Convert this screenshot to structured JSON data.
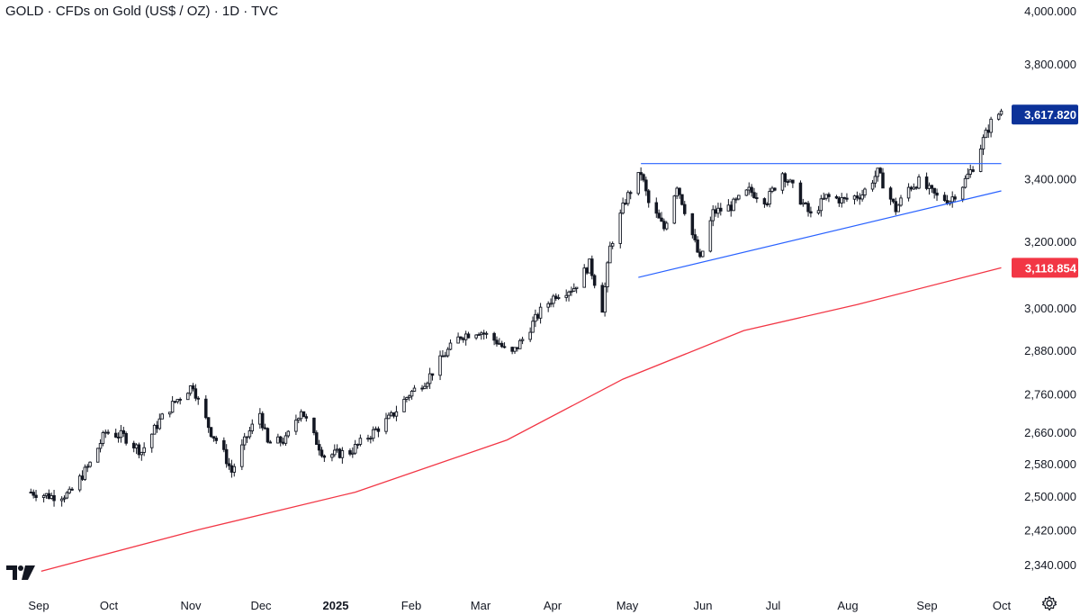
{
  "title": "GOLD · CFDs on Gold (US$ / OZ) · 1D · TVC",
  "icons": {
    "logo": "tradingview-logo-icon",
    "settings": "settings-gear-icon"
  },
  "colors": {
    "candle": "#131722",
    "ma_line": "#f23645",
    "trendline": "#2962ff",
    "last_price_badge": "#0c3299",
    "ma_badge": "#f23645"
  },
  "chart_data": {
    "type": "candlestick",
    "symbol": "GOLD",
    "interval": "1D",
    "x_tick_labels": [
      "Sep",
      "Oct",
      "Nov",
      "Dec",
      "2025",
      "Feb",
      "Mar",
      "Apr",
      "May",
      "Jun",
      "Jul",
      "Aug",
      "Sep",
      "Oct"
    ],
    "x_bold_labels": [
      "2025"
    ],
    "y_tick_labels": [
      "4,000.000",
      "3,800.000",
      "3,400.000",
      "3,200.000",
      "3,000.000",
      "2,880.000",
      "2,760.000",
      "2,660.000",
      "2,580.000",
      "2,500.000",
      "2,420.000",
      "2,340.000"
    ],
    "y_axis_scale": "log",
    "price_path_daily_closes": [
      [
        "2024-08-28",
        2510
      ],
      [
        "2024-09-05",
        2500
      ],
      [
        "2024-09-12",
        2505
      ],
      [
        "2024-09-20",
        2580
      ],
      [
        "2024-09-26",
        2660
      ],
      [
        "2024-10-03",
        2650
      ],
      [
        "2024-10-10",
        2610
      ],
      [
        "2024-10-17",
        2690
      ],
      [
        "2024-10-23",
        2740
      ],
      [
        "2024-10-30",
        2785
      ],
      [
        "2024-11-01",
        2740
      ],
      [
        "2024-11-06",
        2660
      ],
      [
        "2024-11-10",
        2620
      ],
      [
        "2024-11-14",
        2560
      ],
      [
        "2024-11-20",
        2650
      ],
      [
        "2024-11-25",
        2710
      ],
      [
        "2024-11-28",
        2630
      ],
      [
        "2024-12-05",
        2640
      ],
      [
        "2024-12-11",
        2720
      ],
      [
        "2024-12-15",
        2660
      ],
      [
        "2024-12-20",
        2600
      ],
      [
        "2024-12-30",
        2610
      ],
      [
        "2025-01-08",
        2660
      ],
      [
        "2025-01-15",
        2700
      ],
      [
        "2025-01-22",
        2760
      ],
      [
        "2025-01-29",
        2800
      ],
      [
        "2025-02-05",
        2870
      ],
      [
        "2025-02-11",
        2920
      ],
      [
        "2025-02-18",
        2935
      ],
      [
        "2025-02-26",
        2900
      ],
      [
        "2025-03-02",
        2860
      ],
      [
        "2025-03-07",
        2910
      ],
      [
        "2025-03-14",
        2990
      ],
      [
        "2025-03-20",
        3040
      ],
      [
        "2025-03-27",
        3060
      ],
      [
        "2025-04-02",
        3130
      ],
      [
        "2025-04-07",
        3000
      ],
      [
        "2025-04-10",
        3180
      ],
      [
        "2025-04-16",
        3330
      ],
      [
        "2025-04-22",
        3420
      ],
      [
        "2025-04-25",
        3320
      ],
      [
        "2025-05-01",
        3240
      ],
      [
        "2025-05-06",
        3380
      ],
      [
        "2025-05-12",
        3220
      ],
      [
        "2025-05-15",
        3140
      ],
      [
        "2025-05-20",
        3290
      ],
      [
        "2025-05-27",
        3310
      ],
      [
        "2025-06-03",
        3360
      ],
      [
        "2025-06-10",
        3330
      ],
      [
        "2025-06-16",
        3420
      ],
      [
        "2025-06-20",
        3370
      ],
      [
        "2025-06-27",
        3280
      ],
      [
        "2025-07-03",
        3340
      ],
      [
        "2025-07-10",
        3330
      ],
      [
        "2025-07-17",
        3350
      ],
      [
        "2025-07-23",
        3420
      ],
      [
        "2025-07-30",
        3300
      ],
      [
        "2025-08-04",
        3370
      ],
      [
        "2025-08-08",
        3390
      ],
      [
        "2025-08-15",
        3340
      ],
      [
        "2025-08-20",
        3330
      ],
      [
        "2025-08-25",
        3380
      ],
      [
        "2025-08-29",
        3440
      ],
      [
        "2025-09-02",
        3530
      ],
      [
        "2025-09-05",
        3590
      ],
      [
        "2025-09-09",
        3630
      ]
    ],
    "lines": [
      {
        "name": "moving average",
        "color": "#f23645",
        "points": [
          [
            "2024-09-01",
            2325
          ],
          [
            "2024-11-01",
            2420
          ],
          [
            "2025-01-01",
            2510
          ],
          [
            "2025-03-01",
            2640
          ],
          [
            "2025-04-15",
            2800
          ],
          [
            "2025-06-01",
            2935
          ],
          [
            "2025-07-15",
            3010
          ],
          [
            "2025-09-09",
            3118.854
          ]
        ]
      }
    ],
    "drawings": [
      {
        "type": "horizontal_resistance",
        "color": "#2962ff",
        "start": "2025-04-22",
        "end": "2025-09-09",
        "value": 3450
      },
      {
        "type": "rising_support",
        "color": "#2962ff",
        "start": "2025-04-21",
        "start_value": 3090,
        "end": "2025-09-09",
        "end_value": 3360
      }
    ],
    "price_labels": [
      {
        "label": "3,617.820",
        "type": "last_price",
        "color": "#0c3299"
      },
      {
        "label": "3,118.854",
        "type": "moving_average",
        "color": "#f23645"
      }
    ]
  }
}
